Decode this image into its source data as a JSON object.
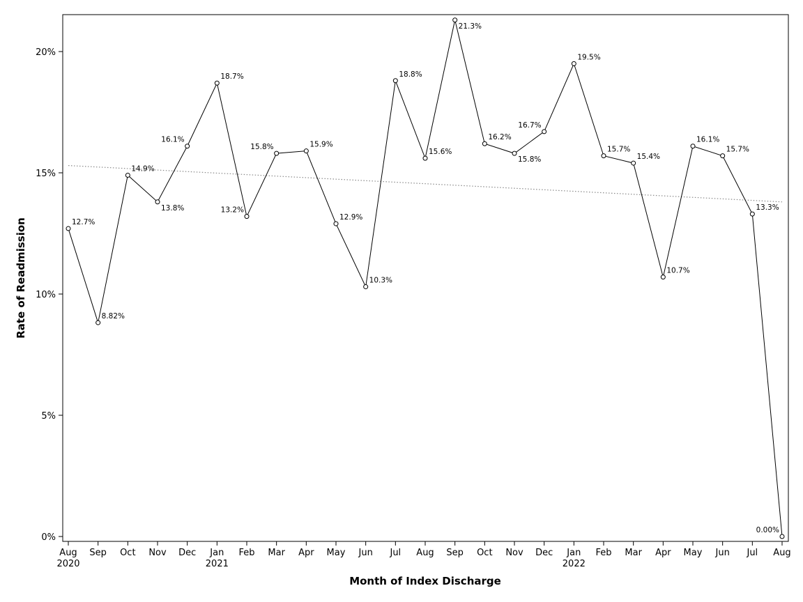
{
  "chart_data": {
    "type": "line",
    "title": "",
    "xlabel": "Month of Index Discharge",
    "ylabel": "Rate of Readmission",
    "ylim": [
      0,
      21.5
    ],
    "yticks": [
      "0%",
      "5%",
      "10%",
      "15%",
      "20%"
    ],
    "ytick_values": [
      0,
      5,
      10,
      15,
      20
    ],
    "categories": [
      "Aug",
      "Sep",
      "Oct",
      "Nov",
      "Dec",
      "Jan",
      "Feb",
      "Mar",
      "Apr",
      "May",
      "Jun",
      "Jul",
      "Aug",
      "Sep",
      "Oct",
      "Nov",
      "Dec",
      "Jan",
      "Feb",
      "Mar",
      "Apr",
      "May",
      "Jun",
      "Jul",
      "Aug"
    ],
    "years": [
      {
        "index": 0,
        "label": "2020"
      },
      {
        "index": 5,
        "label": "2021"
      },
      {
        "index": 17,
        "label": "2022"
      }
    ],
    "series": [
      {
        "name": "Rate of Readmission",
        "values": [
          12.7,
          8.82,
          14.9,
          13.8,
          16.1,
          18.7,
          13.2,
          15.8,
          15.9,
          12.9,
          10.3,
          18.8,
          15.6,
          21.3,
          16.2,
          15.8,
          16.7,
          19.5,
          15.7,
          15.4,
          10.7,
          16.1,
          15.7,
          13.3,
          0.0
        ],
        "labels": [
          "12.7%",
          "8.82%",
          "14.9%",
          "13.8%",
          "16.1%",
          "18.7%",
          "13.2%",
          "15.8%",
          "15.9%",
          "12.9%",
          "10.3%",
          "18.8%",
          "15.6%",
          "21.3%",
          "16.2%",
          "15.8%",
          "16.7%",
          "19.5%",
          "15.7%",
          "15.4%",
          "10.7%",
          "16.1%",
          "15.7%",
          "13.3%",
          "0.00%"
        ],
        "label_pos": [
          "ne",
          "ne",
          "ne",
          "se",
          "nw",
          "ne",
          "nw",
          "nw",
          "ne",
          "ne",
          "ne",
          "ne",
          "ne",
          "se",
          "ne",
          "se",
          "nw",
          "ne",
          "ne",
          "ne",
          "ne",
          "ne",
          "ne",
          "ne",
          "nw"
        ]
      }
    ],
    "trend": {
      "start": 15.3,
      "end": 13.8
    },
    "grid": false,
    "legend": "none"
  }
}
